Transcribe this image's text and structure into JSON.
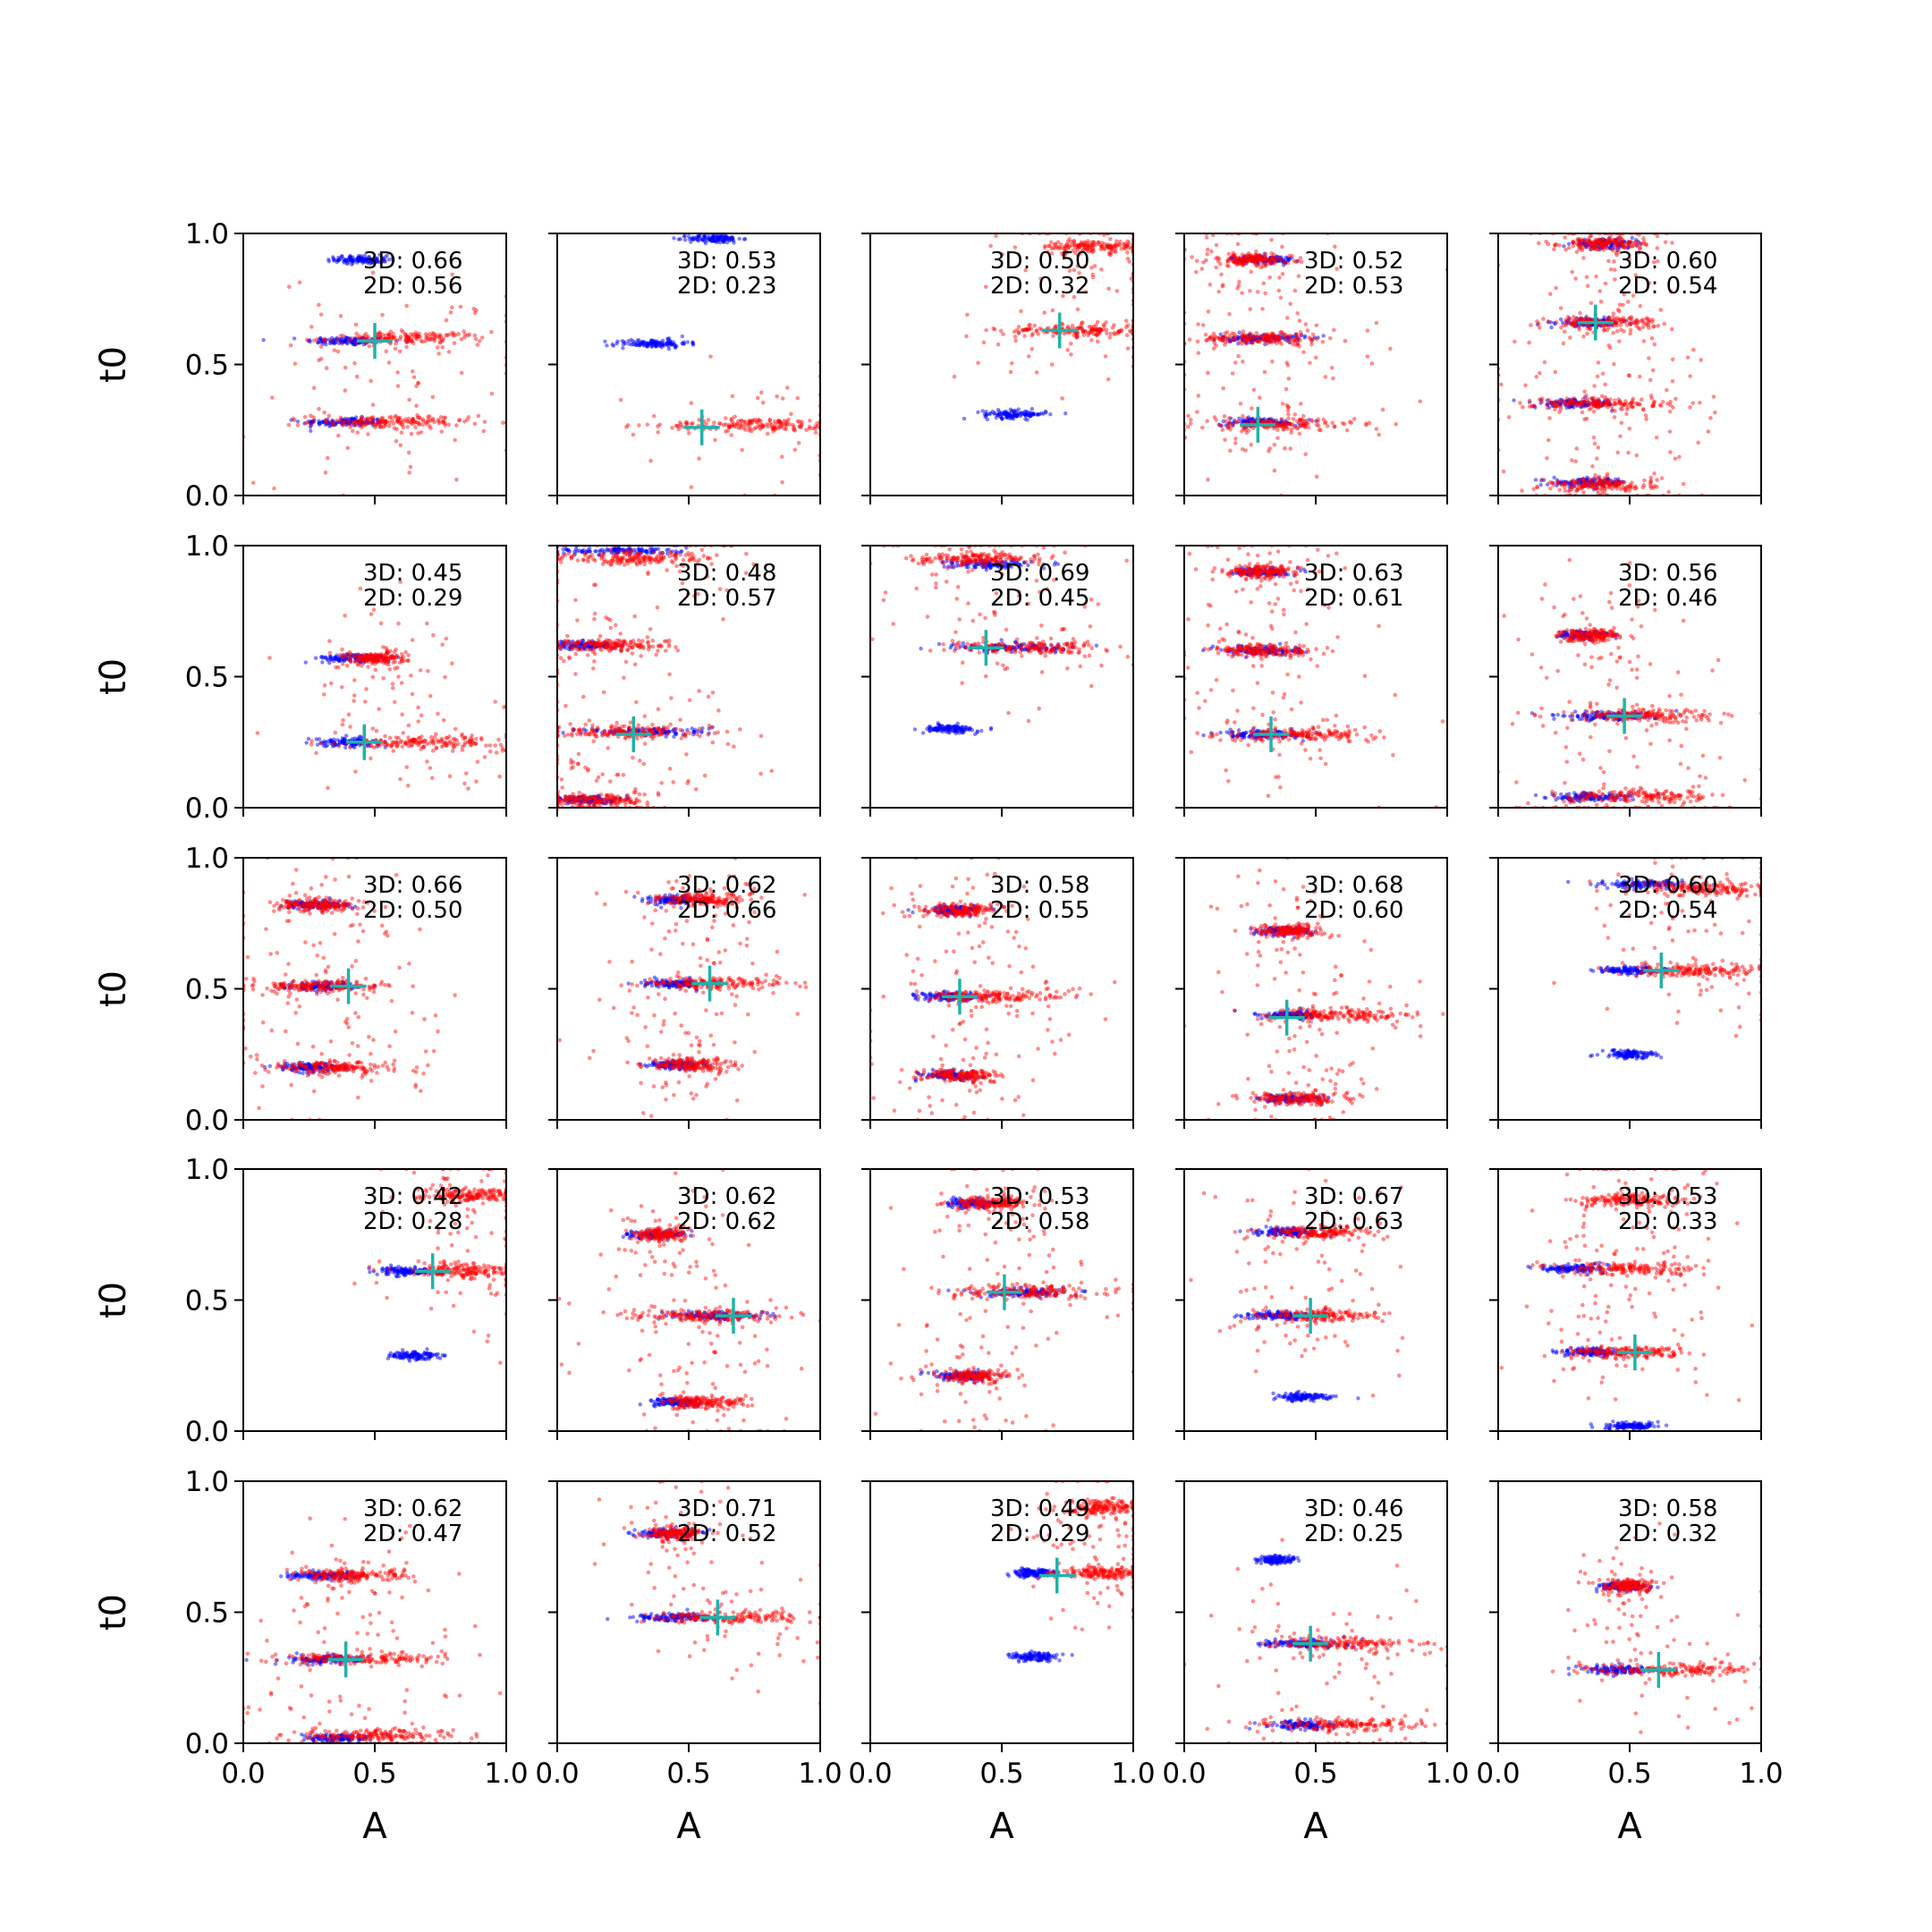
{
  "chart_data": {
    "type": "scatter",
    "layout": "5x5 grid of panels",
    "xlabel": "A",
    "ylabel": "t0",
    "xlim": [
      0,
      1
    ],
    "ylim": [
      0,
      1
    ],
    "x_ticks": [
      "0.0",
      "0.5",
      "1.0"
    ],
    "y_ticks": [
      "0.0",
      "0.5",
      "1.0"
    ],
    "x_tick_values": [
      0,
      0.5,
      1
    ],
    "y_tick_values": [
      0,
      0.5,
      1
    ],
    "grid": false,
    "colors": {
      "samples_2d": "#ff0000",
      "samples_3d": "#0000ff",
      "truth_marker": "#20b2aa"
    },
    "panels": [
      {
        "row": 0,
        "col": 0,
        "label_3d": "3D: 0.66",
        "label_2d": "2D: 0.56",
        "truth": [
          0.5,
          0.59
        ],
        "blue_clusters": [
          [
            0.4,
            0.59,
            0.08
          ],
          [
            0.38,
            0.28,
            0.08
          ],
          [
            0.45,
            0.9,
            0.05
          ]
        ],
        "red_clusters": [
          [
            0.62,
            0.6,
            0.15
          ],
          [
            0.55,
            0.28,
            0.15
          ]
        ]
      },
      {
        "row": 0,
        "col": 1,
        "label_3d": "3D: 0.53",
        "label_2d": "2D: 0.23",
        "truth": [
          0.55,
          0.26
        ],
        "blue_clusters": [
          [
            0.36,
            0.58,
            0.07
          ],
          [
            0.6,
            0.98,
            0.05
          ]
        ],
        "red_clusters": [
          [
            0.75,
            0.27,
            0.18
          ]
        ]
      },
      {
        "row": 0,
        "col": 2,
        "label_3d": "3D: 0.50",
        "label_2d": "2D: 0.32",
        "truth": [
          0.72,
          0.63
        ],
        "blue_clusters": [
          [
            0.55,
            0.31,
            0.06
          ]
        ],
        "red_clusters": [
          [
            0.78,
            0.63,
            0.14
          ],
          [
            0.85,
            0.95,
            0.1
          ]
        ]
      },
      {
        "row": 0,
        "col": 3,
        "label_3d": "3D: 0.52",
        "label_2d": "2D: 0.53",
        "truth": [
          0.28,
          0.27
        ],
        "blue_clusters": [
          [
            0.3,
            0.9,
            0.06
          ],
          [
            0.3,
            0.6,
            0.08
          ],
          [
            0.28,
            0.28,
            0.08
          ]
        ],
        "red_clusters": [
          [
            0.3,
            0.6,
            0.12
          ],
          [
            0.35,
            0.27,
            0.15
          ],
          [
            0.25,
            0.9,
            0.08
          ]
        ]
      },
      {
        "row": 0,
        "col": 4,
        "label_3d": "3D: 0.60",
        "label_2d": "2D: 0.54",
        "truth": [
          0.37,
          0.66
        ],
        "blue_clusters": [
          [
            0.4,
            0.96,
            0.06
          ],
          [
            0.3,
            0.35,
            0.08
          ],
          [
            0.35,
            0.05,
            0.07
          ],
          [
            0.35,
            0.66,
            0.06
          ]
        ],
        "red_clusters": [
          [
            0.4,
            0.66,
            0.1
          ],
          [
            0.4,
            0.35,
            0.13
          ],
          [
            0.4,
            0.04,
            0.1
          ],
          [
            0.4,
            0.96,
            0.08
          ]
        ]
      },
      {
        "row": 1,
        "col": 0,
        "label_3d": "3D: 0.45",
        "label_2d": "2D: 0.29",
        "truth": [
          0.46,
          0.25
        ],
        "blue_clusters": [
          [
            0.42,
            0.57,
            0.07
          ],
          [
            0.4,
            0.25,
            0.06
          ]
        ],
        "red_clusters": [
          [
            0.7,
            0.25,
            0.15
          ],
          [
            0.5,
            0.57,
            0.06
          ]
        ]
      },
      {
        "row": 1,
        "col": 1,
        "label_3d": "3D: 0.48",
        "label_2d": "2D: 0.57",
        "truth": [
          0.29,
          0.28
        ],
        "blue_clusters": [
          [
            0.25,
            0.98,
            0.12
          ],
          [
            0.35,
            0.29,
            0.12
          ],
          [
            0.1,
            0.62,
            0.06
          ],
          [
            0.1,
            0.03,
            0.06
          ]
        ],
        "red_clusters": [
          [
            0.25,
            0.29,
            0.15
          ],
          [
            0.2,
            0.62,
            0.12
          ],
          [
            0.3,
            0.95,
            0.15
          ],
          [
            0.15,
            0.03,
            0.1
          ]
        ]
      },
      {
        "row": 1,
        "col": 2,
        "label_3d": "3D: 0.69",
        "label_2d": "2D: 0.45",
        "truth": [
          0.44,
          0.61
        ],
        "blue_clusters": [
          [
            0.55,
            0.61,
            0.12
          ],
          [
            0.3,
            0.3,
            0.05
          ],
          [
            0.45,
            0.93,
            0.08
          ]
        ],
        "red_clusters": [
          [
            0.6,
            0.61,
            0.14
          ],
          [
            0.4,
            0.95,
            0.12
          ]
        ]
      },
      {
        "row": 1,
        "col": 3,
        "label_3d": "3D: 0.63",
        "label_2d": "2D: 0.61",
        "truth": [
          0.33,
          0.28
        ],
        "blue_clusters": [
          [
            0.3,
            0.9,
            0.05
          ],
          [
            0.3,
            0.6,
            0.07
          ],
          [
            0.3,
            0.28,
            0.08
          ]
        ],
        "red_clusters": [
          [
            0.45,
            0.28,
            0.15
          ],
          [
            0.3,
            0.6,
            0.1
          ],
          [
            0.3,
            0.9,
            0.07
          ]
        ]
      },
      {
        "row": 1,
        "col": 4,
        "label_3d": "3D: 0.56",
        "label_2d": "2D: 0.46",
        "truth": [
          0.48,
          0.35
        ],
        "blue_clusters": [
          [
            0.32,
            0.66,
            0.05
          ],
          [
            0.4,
            0.35,
            0.1
          ],
          [
            0.35,
            0.04,
            0.08
          ]
        ],
        "red_clusters": [
          [
            0.55,
            0.35,
            0.15
          ],
          [
            0.55,
            0.04,
            0.15
          ],
          [
            0.35,
            0.66,
            0.06
          ]
        ]
      },
      {
        "row": 2,
        "col": 0,
        "label_3d": "3D: 0.66",
        "label_2d": "2D: 0.50",
        "truth": [
          0.4,
          0.51
        ],
        "blue_clusters": [
          [
            0.28,
            0.82,
            0.06
          ],
          [
            0.3,
            0.51,
            0.07
          ],
          [
            0.25,
            0.2,
            0.06
          ]
        ],
        "red_clusters": [
          [
            0.3,
            0.51,
            0.12
          ],
          [
            0.35,
            0.2,
            0.12
          ],
          [
            0.3,
            0.82,
            0.08
          ]
        ]
      },
      {
        "row": 2,
        "col": 1,
        "label_3d": "3D: 0.62",
        "label_2d": "2D: 0.66",
        "truth": [
          0.58,
          0.52
        ],
        "blue_clusters": [
          [
            0.45,
            0.84,
            0.05
          ],
          [
            0.45,
            0.52,
            0.06
          ],
          [
            0.45,
            0.21,
            0.05
          ]
        ],
        "red_clusters": [
          [
            0.6,
            0.52,
            0.14
          ],
          [
            0.55,
            0.84,
            0.08
          ],
          [
            0.5,
            0.21,
            0.08
          ]
        ]
      },
      {
        "row": 2,
        "col": 2,
        "label_3d": "3D: 0.58",
        "label_2d": "2D: 0.55",
        "truth": [
          0.34,
          0.47
        ],
        "blue_clusters": [
          [
            0.32,
            0.8,
            0.05
          ],
          [
            0.3,
            0.47,
            0.06
          ],
          [
            0.3,
            0.17,
            0.05
          ]
        ],
        "red_clusters": [
          [
            0.45,
            0.47,
            0.14
          ],
          [
            0.35,
            0.8,
            0.07
          ],
          [
            0.35,
            0.17,
            0.07
          ]
        ]
      },
      {
        "row": 2,
        "col": 3,
        "label_3d": "3D: 0.68",
        "label_2d": "2D: 0.60",
        "truth": [
          0.39,
          0.39
        ],
        "blue_clusters": [
          [
            0.38,
            0.72,
            0.05
          ],
          [
            0.4,
            0.4,
            0.06
          ],
          [
            0.4,
            0.08,
            0.06
          ]
        ],
        "red_clusters": [
          [
            0.55,
            0.4,
            0.14
          ],
          [
            0.4,
            0.72,
            0.06
          ],
          [
            0.45,
            0.08,
            0.1
          ]
        ]
      },
      {
        "row": 2,
        "col": 4,
        "label_3d": "3D: 0.60",
        "label_2d": "2D: 0.54",
        "truth": [
          0.62,
          0.57
        ],
        "blue_clusters": [
          [
            0.55,
            0.9,
            0.08
          ],
          [
            0.5,
            0.57,
            0.06
          ],
          [
            0.5,
            0.25,
            0.05
          ]
        ],
        "red_clusters": [
          [
            0.75,
            0.57,
            0.14
          ],
          [
            0.8,
            0.88,
            0.12
          ]
        ]
      },
      {
        "row": 3,
        "col": 0,
        "label_3d": "3D: 0.42",
        "label_2d": "2D: 0.28",
        "truth": [
          0.72,
          0.61
        ],
        "blue_clusters": [
          [
            0.62,
            0.61,
            0.05
          ],
          [
            0.65,
            0.29,
            0.05
          ]
        ],
        "red_clusters": [
          [
            0.85,
            0.61,
            0.1
          ],
          [
            0.85,
            0.9,
            0.1
          ]
        ]
      },
      {
        "row": 3,
        "col": 1,
        "label_3d": "3D: 0.62",
        "label_2d": "2D: 0.62",
        "truth": [
          0.67,
          0.44
        ],
        "blue_clusters": [
          [
            0.38,
            0.75,
            0.05
          ],
          [
            0.6,
            0.44,
            0.08
          ],
          [
            0.45,
            0.11,
            0.05
          ]
        ],
        "red_clusters": [
          [
            0.55,
            0.44,
            0.15
          ],
          [
            0.55,
            0.11,
            0.08
          ],
          [
            0.4,
            0.75,
            0.05
          ]
        ]
      },
      {
        "row": 3,
        "col": 2,
        "label_3d": "3D: 0.53",
        "label_2d": "2D: 0.58",
        "truth": [
          0.51,
          0.53
        ],
        "blue_clusters": [
          [
            0.4,
            0.87,
            0.05
          ],
          [
            0.6,
            0.53,
            0.1
          ],
          [
            0.35,
            0.21,
            0.06
          ]
        ],
        "red_clusters": [
          [
            0.6,
            0.53,
            0.15
          ],
          [
            0.45,
            0.87,
            0.07
          ],
          [
            0.4,
            0.21,
            0.07
          ]
        ]
      },
      {
        "row": 3,
        "col": 3,
        "label_3d": "3D: 0.67",
        "label_2d": "2D: 0.63",
        "truth": [
          0.48,
          0.44
        ],
        "blue_clusters": [
          [
            0.38,
            0.76,
            0.06
          ],
          [
            0.35,
            0.44,
            0.06
          ],
          [
            0.45,
            0.13,
            0.05
          ]
        ],
        "red_clusters": [
          [
            0.5,
            0.44,
            0.12
          ],
          [
            0.5,
            0.76,
            0.1
          ]
        ]
      },
      {
        "row": 3,
        "col": 4,
        "label_3d": "3D: 0.53",
        "label_2d": "2D: 0.33",
        "truth": [
          0.52,
          0.3
        ],
        "blue_clusters": [
          [
            0.28,
            0.62,
            0.06
          ],
          [
            0.35,
            0.3,
            0.06
          ],
          [
            0.5,
            0.02,
            0.05
          ]
        ],
        "red_clusters": [
          [
            0.5,
            0.62,
            0.12
          ],
          [
            0.5,
            0.3,
            0.12
          ],
          [
            0.5,
            0.88,
            0.1
          ]
        ]
      },
      {
        "row": 4,
        "col": 0,
        "label_3d": "3D: 0.62",
        "label_2d": "2D: 0.47",
        "truth": [
          0.39,
          0.32
        ],
        "blue_clusters": [
          [
            0.3,
            0.64,
            0.06
          ],
          [
            0.3,
            0.32,
            0.07
          ],
          [
            0.35,
            0.02,
            0.06
          ]
        ],
        "red_clusters": [
          [
            0.45,
            0.32,
            0.15
          ],
          [
            0.4,
            0.64,
            0.1
          ],
          [
            0.5,
            0.03,
            0.15
          ]
        ]
      },
      {
        "row": 4,
        "col": 1,
        "label_3d": "3D: 0.71",
        "label_2d": "2D: 0.52",
        "truth": [
          0.61,
          0.48
        ],
        "blue_clusters": [
          [
            0.42,
            0.8,
            0.06
          ],
          [
            0.45,
            0.48,
            0.08
          ]
        ],
        "red_clusters": [
          [
            0.65,
            0.48,
            0.15
          ],
          [
            0.45,
            0.8,
            0.05
          ]
        ]
      },
      {
        "row": 4,
        "col": 2,
        "label_3d": "3D: 0.49",
        "label_2d": "2D: 0.29",
        "truth": [
          0.71,
          0.64
        ],
        "blue_clusters": [
          [
            0.62,
            0.65,
            0.04
          ],
          [
            0.62,
            0.33,
            0.04
          ]
        ],
        "red_clusters": [
          [
            0.88,
            0.65,
            0.08
          ],
          [
            0.88,
            0.9,
            0.08
          ]
        ]
      },
      {
        "row": 4,
        "col": 3,
        "label_3d": "3D: 0.46",
        "label_2d": "2D: 0.25",
        "truth": [
          0.48,
          0.38
        ],
        "blue_clusters": [
          [
            0.35,
            0.7,
            0.04
          ],
          [
            0.45,
            0.38,
            0.08
          ],
          [
            0.45,
            0.07,
            0.07
          ]
        ],
        "red_clusters": [
          [
            0.6,
            0.38,
            0.15
          ],
          [
            0.6,
            0.07,
            0.15
          ]
        ]
      },
      {
        "row": 4,
        "col": 4,
        "label_3d": "3D: 0.58",
        "label_2d": "2D: 0.32",
        "truth": [
          0.61,
          0.28
        ],
        "blue_clusters": [
          [
            0.48,
            0.6,
            0.05
          ],
          [
            0.45,
            0.28,
            0.06
          ]
        ],
        "red_clusters": [
          [
            0.65,
            0.28,
            0.14
          ],
          [
            0.5,
            0.6,
            0.05
          ]
        ]
      }
    ]
  }
}
